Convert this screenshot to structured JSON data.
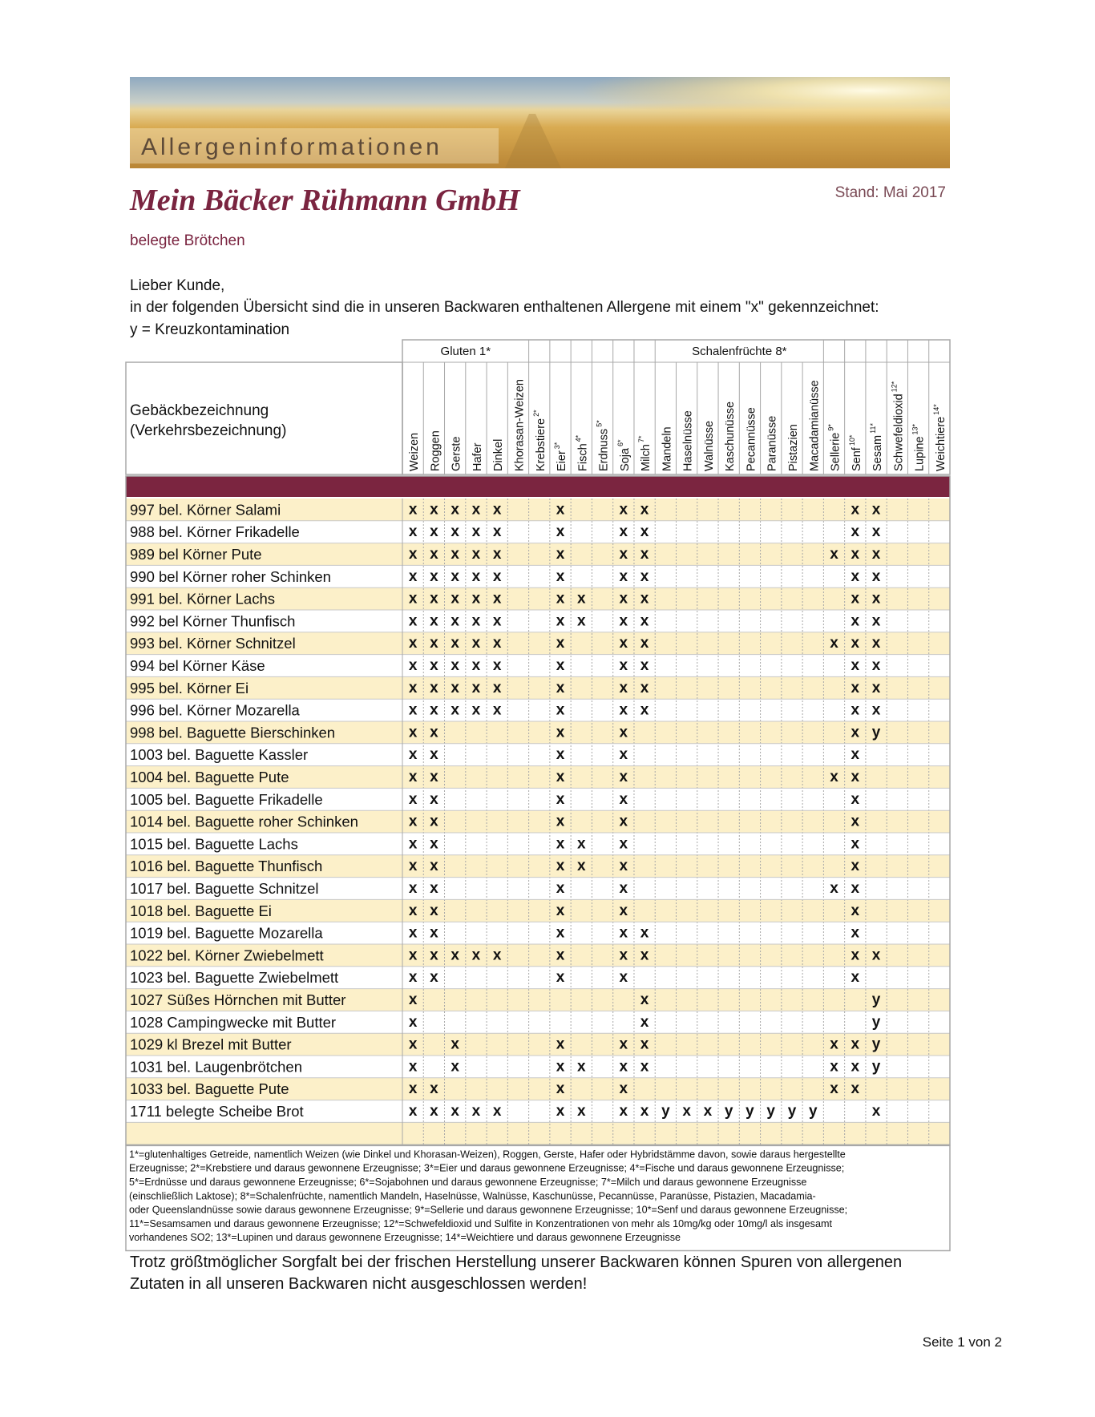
{
  "header": {
    "banner_title": "Allergeninformationen",
    "company": "Mein Bäcker Rühmann GmbH",
    "date": "Stand: Mai 2017",
    "subtitle": "belegte Brötchen"
  },
  "intro": [
    "Lieber Kunde,",
    "in der folgenden Übersicht sind die in unseren Backwaren enthaltenen Allergene mit einem \"x\" gekennzeichnet:",
    "y = Kreuzkontamination"
  ],
  "table": {
    "name_header": [
      "Gebäckbezeichnung",
      "(Verkehrsbezeichnung)"
    ],
    "columns": [
      {
        "group": "Gluten 1*",
        "columns": [
          {
            "name": "Weizen"
          },
          {
            "name": "Roggen"
          },
          {
            "name": "Gerste"
          },
          {
            "name": "Hafer"
          },
          {
            "name": "Dinkel"
          },
          {
            "name": "Khorasan-Weizen"
          }
        ]
      },
      {
        "name": "Krebstiere",
        "note": "2*"
      },
      {
        "name": "Eier",
        "note": "3*"
      },
      {
        "name": "Fisch",
        "note": "4*"
      },
      {
        "name": "Erdnuss",
        "note": "5*"
      },
      {
        "name": "Soja",
        "note": "6*"
      },
      {
        "name": "Milch",
        "note": "7*"
      },
      {
        "group": "Schalenfrüchte 8*",
        "columns": [
          {
            "name": "Mandeln"
          },
          {
            "name": "Haselnüsse"
          },
          {
            "name": "Walnüsse"
          },
          {
            "name": "Kaschunüsse"
          },
          {
            "name": "Pecannüsse"
          },
          {
            "name": "Paranüsse"
          },
          {
            "name": "Pistazien"
          },
          {
            "name": "Macadamianüsse"
          }
        ]
      },
      {
        "name": "Sellerie",
        "note": "9*"
      },
      {
        "name": "Senf",
        "note": "10*"
      },
      {
        "name": "Sesam",
        "note": "11*"
      },
      {
        "name": "Schwefeldioxid",
        "note": "12*"
      },
      {
        "name": "Lupine",
        "note": "13*"
      },
      {
        "name": "Weichtiere",
        "note": "14*"
      }
    ],
    "rows": [
      {
        "name": "997 bel. Körner Salami",
        "cells": [
          "x",
          "x",
          "x",
          "x",
          "x",
          null,
          null,
          "x",
          null,
          null,
          "x",
          "x",
          null,
          null,
          null,
          null,
          null,
          null,
          null,
          null,
          null,
          "x",
          "x",
          null,
          null,
          null
        ]
      },
      {
        "name": "988 bel. Körner Frikadelle",
        "cells": [
          "x",
          "x",
          "x",
          "x",
          "x",
          null,
          null,
          "x",
          null,
          null,
          "x",
          "x",
          null,
          null,
          null,
          null,
          null,
          null,
          null,
          null,
          null,
          "x",
          "x",
          null,
          null,
          null
        ]
      },
      {
        "name": "989 bel Körner Pute",
        "cells": [
          "x",
          "x",
          "x",
          "x",
          "x",
          null,
          null,
          "x",
          null,
          null,
          "x",
          "x",
          null,
          null,
          null,
          null,
          null,
          null,
          null,
          null,
          "x",
          "x",
          "x",
          null,
          null,
          null
        ]
      },
      {
        "name": "990 bel Körner roher Schinken",
        "cells": [
          "x",
          "x",
          "x",
          "x",
          "x",
          null,
          null,
          "x",
          null,
          null,
          "x",
          "x",
          null,
          null,
          null,
          null,
          null,
          null,
          null,
          null,
          null,
          "x",
          "x",
          null,
          null,
          null
        ]
      },
      {
        "name": "991 bel. Körner Lachs",
        "cells": [
          "x",
          "x",
          "x",
          "x",
          "x",
          null,
          null,
          "x",
          "x",
          null,
          "x",
          "x",
          null,
          null,
          null,
          null,
          null,
          null,
          null,
          null,
          null,
          "x",
          "x",
          null,
          null,
          null
        ]
      },
      {
        "name": "992 bel Körner Thunfisch",
        "cells": [
          "x",
          "x",
          "x",
          "x",
          "x",
          null,
          null,
          "x",
          "x",
          null,
          "x",
          "x",
          null,
          null,
          null,
          null,
          null,
          null,
          null,
          null,
          null,
          "x",
          "x",
          null,
          null,
          null
        ]
      },
      {
        "name": "993 bel. Körner Schnitzel",
        "cells": [
          "x",
          "x",
          "x",
          "x",
          "x",
          null,
          null,
          "x",
          null,
          null,
          "x",
          "x",
          null,
          null,
          null,
          null,
          null,
          null,
          null,
          null,
          "x",
          "x",
          "x",
          null,
          null,
          null
        ]
      },
      {
        "name": "994 bel Körner Käse",
        "cells": [
          "x",
          "x",
          "x",
          "x",
          "x",
          null,
          null,
          "x",
          null,
          null,
          "x",
          "x",
          null,
          null,
          null,
          null,
          null,
          null,
          null,
          null,
          null,
          "x",
          "x",
          null,
          null,
          null
        ]
      },
      {
        "name": "995 bel. Körner Ei",
        "cells": [
          "x",
          "x",
          "x",
          "x",
          "x",
          null,
          null,
          "x",
          null,
          null,
          "x",
          "x",
          null,
          null,
          null,
          null,
          null,
          null,
          null,
          null,
          null,
          "x",
          "x",
          null,
          null,
          null
        ]
      },
      {
        "name": "996 bel. Körner Mozarella",
        "cells": [
          "x",
          "x",
          "x",
          "x",
          "x",
          null,
          null,
          "x",
          null,
          null,
          "x",
          "x",
          null,
          null,
          null,
          null,
          null,
          null,
          null,
          null,
          null,
          "x",
          "x",
          null,
          null,
          null
        ]
      },
      {
        "name": "998 bel. Baguette Bierschinken",
        "cells": [
          "x",
          "x",
          null,
          null,
          null,
          null,
          null,
          "x",
          null,
          null,
          "x",
          null,
          null,
          null,
          null,
          null,
          null,
          null,
          null,
          null,
          null,
          "x",
          "y",
          null,
          null,
          null
        ]
      },
      {
        "name": "1003 bel. Baguette Kassler",
        "cells": [
          "x",
          "x",
          null,
          null,
          null,
          null,
          null,
          "x",
          null,
          null,
          "x",
          null,
          null,
          null,
          null,
          null,
          null,
          null,
          null,
          null,
          null,
          "x",
          null,
          null,
          null,
          null
        ]
      },
      {
        "name": "1004 bel. Baguette Pute",
        "cells": [
          "x",
          "x",
          null,
          null,
          null,
          null,
          null,
          "x",
          null,
          null,
          "x",
          null,
          null,
          null,
          null,
          null,
          null,
          null,
          null,
          null,
          "x",
          "x",
          null,
          null,
          null,
          null
        ]
      },
      {
        "name": "1005 bel. Baguette Frikadelle",
        "cells": [
          "x",
          "x",
          null,
          null,
          null,
          null,
          null,
          "x",
          null,
          null,
          "x",
          null,
          null,
          null,
          null,
          null,
          null,
          null,
          null,
          null,
          null,
          "x",
          null,
          null,
          null,
          null
        ]
      },
      {
        "name": "1014 bel. Baguette roher Schinken",
        "cells": [
          "x",
          "x",
          null,
          null,
          null,
          null,
          null,
          "x",
          null,
          null,
          "x",
          null,
          null,
          null,
          null,
          null,
          null,
          null,
          null,
          null,
          null,
          "x",
          null,
          null,
          null,
          null
        ]
      },
      {
        "name": "1015 bel. Baguette Lachs",
        "cells": [
          "x",
          "x",
          null,
          null,
          null,
          null,
          null,
          "x",
          "x",
          null,
          "x",
          null,
          null,
          null,
          null,
          null,
          null,
          null,
          null,
          null,
          null,
          "x",
          null,
          null,
          null,
          null
        ]
      },
      {
        "name": "1016 bel. Baguette Thunfisch",
        "cells": [
          "x",
          "x",
          null,
          null,
          null,
          null,
          null,
          "x",
          "x",
          null,
          "x",
          null,
          null,
          null,
          null,
          null,
          null,
          null,
          null,
          null,
          null,
          "x",
          null,
          null,
          null,
          null
        ]
      },
      {
        "name": "1017 bel. Baguette Schnitzel",
        "cells": [
          "x",
          "x",
          null,
          null,
          null,
          null,
          null,
          "x",
          null,
          null,
          "x",
          null,
          null,
          null,
          null,
          null,
          null,
          null,
          null,
          null,
          "x",
          "x",
          null,
          null,
          null,
          null
        ]
      },
      {
        "name": "1018 bel. Baguette Ei",
        "cells": [
          "x",
          "x",
          null,
          null,
          null,
          null,
          null,
          "x",
          null,
          null,
          "x",
          null,
          null,
          null,
          null,
          null,
          null,
          null,
          null,
          null,
          null,
          "x",
          null,
          null,
          null,
          null
        ]
      },
      {
        "name": "1019 bel. Baguette Mozarella",
        "cells": [
          "x",
          "x",
          null,
          null,
          null,
          null,
          null,
          "x",
          null,
          null,
          "x",
          "x",
          null,
          null,
          null,
          null,
          null,
          null,
          null,
          null,
          null,
          "x",
          null,
          null,
          null,
          null
        ]
      },
      {
        "name": "1022 bel. Körner Zwiebelmett",
        "cells": [
          "x",
          "x",
          "x",
          "x",
          "x",
          null,
          null,
          "x",
          null,
          null,
          "x",
          "x",
          null,
          null,
          null,
          null,
          null,
          null,
          null,
          null,
          null,
          "x",
          "x",
          null,
          null,
          null
        ]
      },
      {
        "name": "1023 bel. Baguette Zwiebelmett",
        "cells": [
          "x",
          "x",
          null,
          null,
          null,
          null,
          null,
          "x",
          null,
          null,
          "x",
          null,
          null,
          null,
          null,
          null,
          null,
          null,
          null,
          null,
          null,
          "x",
          null,
          null,
          null,
          null
        ]
      },
      {
        "name": "1027 Süßes Hörnchen mit Butter",
        "cells": [
          "x",
          null,
          null,
          null,
          null,
          null,
          null,
          null,
          null,
          null,
          null,
          "x",
          null,
          null,
          null,
          null,
          null,
          null,
          null,
          null,
          null,
          null,
          "y",
          null,
          null,
          null
        ]
      },
      {
        "name": "1028 Campingwecke mit Butter",
        "cells": [
          "x",
          null,
          null,
          null,
          null,
          null,
          null,
          null,
          null,
          null,
          null,
          "x",
          null,
          null,
          null,
          null,
          null,
          null,
          null,
          null,
          null,
          null,
          "y",
          null,
          null,
          null
        ]
      },
      {
        "name": "1029 kl Brezel mit Butter",
        "cells": [
          "x",
          null,
          "x",
          null,
          null,
          null,
          null,
          "x",
          null,
          null,
          "x",
          "x",
          null,
          null,
          null,
          null,
          null,
          null,
          null,
          null,
          "x",
          "x",
          "y",
          null,
          null,
          null
        ]
      },
      {
        "name": "1031 bel. Laugenbrötchen",
        "cells": [
          "x",
          null,
          "x",
          null,
          null,
          null,
          null,
          "x",
          "x",
          null,
          "x",
          "x",
          null,
          null,
          null,
          null,
          null,
          null,
          null,
          null,
          "x",
          "x",
          "y",
          null,
          null,
          null
        ]
      },
      {
        "name": "1033 bel. Baguette Pute",
        "cells": [
          "x",
          "x",
          null,
          null,
          null,
          null,
          null,
          "x",
          null,
          null,
          "x",
          null,
          null,
          null,
          null,
          null,
          null,
          null,
          null,
          null,
          "x",
          "x",
          null,
          null,
          null,
          null
        ]
      },
      {
        "name": "1711 belegte Scheibe Brot",
        "cells": [
          "x",
          "x",
          "x",
          "x",
          "x",
          null,
          null,
          "x",
          "x",
          null,
          "x",
          "x",
          "y",
          "x",
          "x",
          "y",
          "y",
          "y",
          "y",
          "y",
          null,
          null,
          "x",
          null,
          null,
          null
        ]
      }
    ]
  },
  "footnotes": [
    "1*=glutenhaltiges Getreide, namentlich Weizen (wie Dinkel und Khorasan-Weizen), Roggen, Gerste, Hafer oder Hybridstämme davon, sowie daraus hergestellte",
    "Erzeugnisse; 2*=Krebstiere und daraus gewonnene Erzeugnisse; 3*=Eier und daraus gewonnene Erzeugnisse; 4*=Fische und daraus gewonnene Erzeugnisse;",
    "5*=Erdnüsse und daraus gewonnene Erzeugnisse; 6*=Sojabohnen und daraus gewonnene Erzeugnisse; 7*=Milch und daraus gewonnene Erzeugnisse",
    "(einschließlich Laktose); 8*=Schalenfrüchte, namentlich Mandeln, Haselnüsse, Walnüsse, Kaschunüsse, Pecannüsse, Paranüsse, Pistazien, Macadamia-",
    "oder Queenslandnüsse sowie daraus gewonnene Erzeugnisse; 9*=Sellerie und daraus gewonnene Erzeugnisse; 10*=Senf und daraus gewonnene Erzeugnisse;",
    "11*=Sesamsamen und daraus gewonnene Erzeugnisse; 12*=Schwefeldioxid und Sulfite in Konzentrationen von mehr als 10mg/kg oder 10mg/l als insgesamt",
    "vorhandenes SO2; 13*=Lupinen und daraus gewonnene Erzeugnisse; 14*=Weichtiere und daraus gewonnene Erzeugnisse"
  ],
  "disclaimer": [
    "Trotz größtmöglicher Sorgfalt bei der frischen Herstellung unserer Backwaren können Spuren von allergenen",
    "Zutaten in all unseren Backwaren nicht ausgeschlossen werden!"
  ],
  "page_number": "Seite 1 von 2"
}
